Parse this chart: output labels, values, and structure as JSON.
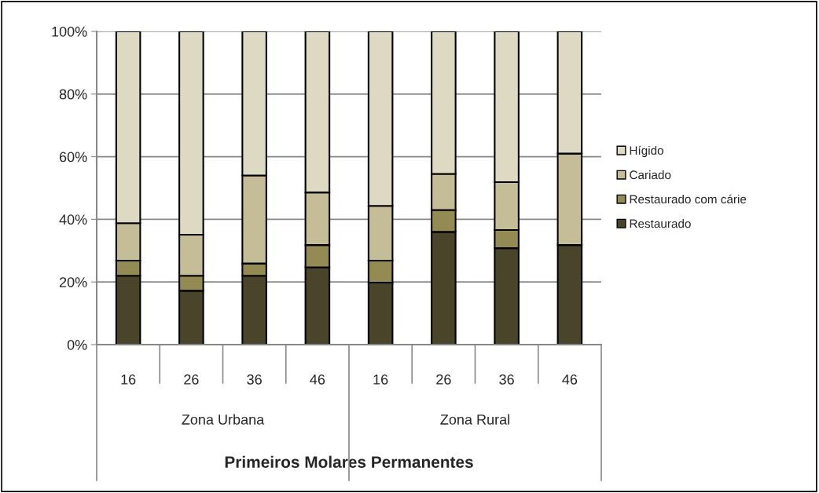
{
  "chart_data": {
    "type": "bar",
    "stacked": true,
    "xlabel": "Primeiros Molares Permanentes",
    "categories": [
      "16",
      "26",
      "36",
      "46",
      "16",
      "26",
      "36",
      "46"
    ],
    "series": [
      {
        "name": "Restaurado",
        "color": "#4a452a",
        "values": [
          22,
          17.2,
          22,
          24.7,
          19.8,
          36,
          30.8,
          31.8
        ]
      },
      {
        "name": "Restaurado com cárie",
        "color": "#948a54",
        "values": [
          4.8,
          4.8,
          3.9,
          7.1,
          7,
          7,
          5.8,
          null
        ]
      },
      {
        "name": "Cariado",
        "color": "#c4bd97",
        "values": [
          12,
          13.1,
          28.1,
          16.8,
          17.5,
          11.5,
          15.3,
          29.2
        ]
      },
      {
        "name": "Hígido",
        "color": "#ddd9c3",
        "values": [
          61.2,
          64.9,
          46,
          51.4,
          55.7,
          45.5,
          48.1,
          39
        ]
      }
    ],
    "annotations": [
      "Zona Urbana",
      "Zona Rural"
    ],
    "ylim": [
      0,
      100
    ],
    "yticks": [
      {
        "value": 0,
        "label": "0%"
      },
      {
        "value": 20,
        "label": "20%"
      },
      {
        "value": 40,
        "label": "40%"
      },
      {
        "value": 60,
        "label": "60%"
      },
      {
        "value": 80,
        "label": "80%"
      },
      {
        "value": 100,
        "label": "100%"
      }
    ],
    "grid": "y",
    "legend": "right"
  }
}
